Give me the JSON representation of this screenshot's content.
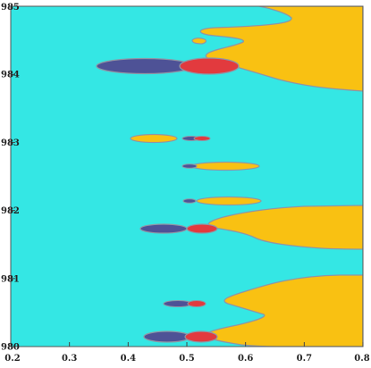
{
  "chart_data": {
    "type": "heatmap",
    "title": "",
    "xlabel": "",
    "ylabel": "",
    "xlim": [
      0.2,
      0.8
    ],
    "ylim": [
      980,
      985
    ],
    "x_ticks": [
      0.2,
      0.3,
      0.4,
      0.5,
      0.6,
      0.7,
      0.8
    ],
    "x_tick_labels": [
      "0.2",
      "0.3",
      "0.4",
      "0.5",
      "0.6",
      "0.7",
      "0.8"
    ],
    "y_ticks": [
      980,
      981,
      982,
      983,
      984,
      985
    ],
    "y_tick_labels": [
      "980",
      "981",
      "982",
      "983",
      "984",
      "985"
    ],
    "grid": false,
    "colors": {
      "background": "#34e7e4",
      "boundary": "#8f96a5",
      "regionA": "#f9c112",
      "regionB": "#4e5296",
      "regionC": "#e23a3e"
    },
    "regions": [
      {
        "class": "regionA",
        "x_from": 0.48,
        "y_from": 984.3,
        "y_to": 985.0
      },
      {
        "class": "regionA",
        "x_from": 0.6,
        "y_from": 983.7,
        "y_to": 984.3
      },
      {
        "class": "regionA",
        "x_from": 0.5,
        "y_from": 981.3,
        "y_to": 982.1
      },
      {
        "class": "regionA",
        "x_from": 0.55,
        "y_from": 980.6,
        "y_to": 980.9
      },
      {
        "class": "regionA",
        "x_from": 0.5,
        "y_from": 980.0,
        "y_to": 980.3
      },
      {
        "class": "regionB",
        "x_range": [
          0.33,
          0.5
        ],
        "y_center": 984.1
      },
      {
        "class": "regionC",
        "x_range": [
          0.48,
          0.58
        ],
        "y_center": 984.1
      },
      {
        "class": "regionA",
        "x_range": [
          0.38,
          0.5
        ],
        "y_center": 983.06
      },
      {
        "class": "regionA",
        "x_range": [
          0.5,
          0.64
        ],
        "y_center": 982.67
      },
      {
        "class": "regionA",
        "x_range": [
          0.5,
          0.62
        ],
        "y_center": 982.17
      },
      {
        "class": "regionB",
        "x_range": [
          0.4,
          0.5
        ],
        "y_center": 981.74
      },
      {
        "class": "regionC",
        "x_range": [
          0.5,
          0.56
        ],
        "y_center": 981.74
      },
      {
        "class": "regionB",
        "x_range": [
          0.43,
          0.5
        ],
        "y_center": 980.58
      },
      {
        "class": "regionB",
        "x_range": [
          0.4,
          0.5
        ],
        "y_center": 980.14
      },
      {
        "class": "regionC",
        "x_range": [
          0.5,
          0.57
        ],
        "y_center": 980.14
      }
    ]
  }
}
